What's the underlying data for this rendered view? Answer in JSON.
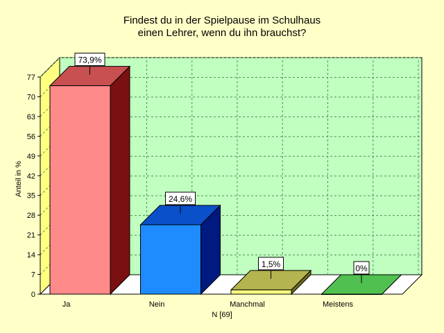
{
  "chart_data": {
    "type": "bar",
    "title_lines": [
      "Findest du in der Spielpause im Schulhaus",
      "einen Lehrer, wenn du ihn brauchst?"
    ],
    "ylabel": "Anteil in %",
    "xlabel": "N [69]",
    "ylim": [
      0,
      77
    ],
    "yticks": [
      0,
      7,
      14,
      21,
      28,
      35,
      42,
      49,
      56,
      63,
      70,
      77
    ],
    "categories": [
      "Ja",
      "Nein",
      "Manchmal",
      "Meistens"
    ],
    "values": [
      73.9,
      24.6,
      1.5,
      0
    ],
    "data_labels": [
      "73,9%",
      "24,6%",
      "1,5%",
      "0%"
    ],
    "bar_colors": [
      {
        "front": "#ff8a8a",
        "top": "#c85050",
        "side": "#7a1010"
      },
      {
        "front": "#1e8cff",
        "top": "#0a50c8",
        "side": "#001a80"
      },
      {
        "front": "#ffff80",
        "top": "#b4b450",
        "side": "#6e6e1e"
      },
      {
        "front": "#78e678",
        "top": "#50c050",
        "side": "#2a8a2a"
      }
    ],
    "grid": true,
    "colors": {
      "background": "#ffffc8",
      "plot_area": "#c0ffc0",
      "left_wall": "#ffff80",
      "grid": "#5a8a5a"
    }
  }
}
